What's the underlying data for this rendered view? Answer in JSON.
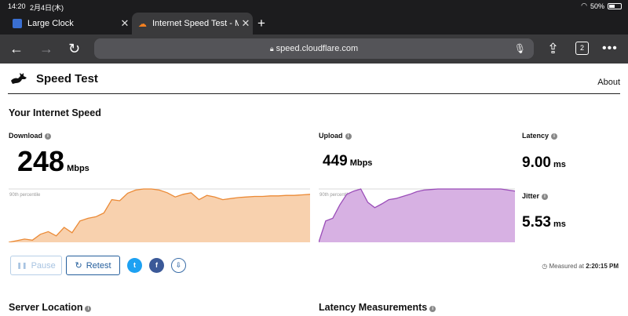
{
  "status": {
    "time": "14:20",
    "date": "2月4日(木)",
    "battery": "50%"
  },
  "tabs": [
    {
      "title": "Large Clock",
      "active": false
    },
    {
      "title": "Internet Speed Test - Measure Network Performance",
      "active": true
    }
  ],
  "toolbar": {
    "url": "speed.cloudflare.com",
    "tab_count": "2"
  },
  "header": {
    "brand": "Speed Test",
    "about": "About"
  },
  "section_title": "Your Internet Speed",
  "metrics": {
    "download": {
      "label": "Download",
      "value": "248",
      "unit": "Mbps"
    },
    "upload": {
      "label": "Upload",
      "value": "449",
      "unit": "Mbps"
    },
    "latency": {
      "label": "Latency",
      "value": "9.00",
      "unit": "ms"
    },
    "jitter": {
      "label": "Jitter",
      "value": "5.53",
      "unit": "ms"
    }
  },
  "chart_label": "90th percentile",
  "buttons": {
    "pause": "Pause",
    "retest": "Retest"
  },
  "social": {
    "twitter": "t",
    "facebook": "f"
  },
  "measured": {
    "prefix": "Measured at",
    "time": "2:20:15 PM"
  },
  "bottom": {
    "server_location": "Server Location",
    "latency_measurements": "Latency Measurements"
  },
  "colors": {
    "download": "#f0a35b",
    "upload": "#b375c9",
    "accent": "#245e9c"
  },
  "chart_data": [
    {
      "type": "area",
      "series": [
        {
          "name": "Download",
          "values": [
            0,
            3,
            6,
            4,
            15,
            20,
            12,
            28,
            18,
            40,
            45,
            48,
            55,
            80,
            78,
            92,
            98,
            100,
            100,
            98,
            93,
            85,
            90,
            93,
            80,
            88,
            85,
            80,
            82,
            84,
            85,
            86,
            86,
            87,
            87,
            88,
            88,
            89,
            90
          ]
        }
      ]
    },
    {
      "type": "area",
      "series": [
        {
          "name": "Upload",
          "values": [
            0,
            40,
            45,
            70,
            90,
            96,
            100,
            75,
            65,
            72,
            80,
            82,
            86,
            90,
            95,
            98,
            99,
            100,
            100,
            100,
            100,
            100,
            100,
            100,
            100,
            100,
            100,
            98,
            96
          ]
        }
      ]
    }
  ]
}
